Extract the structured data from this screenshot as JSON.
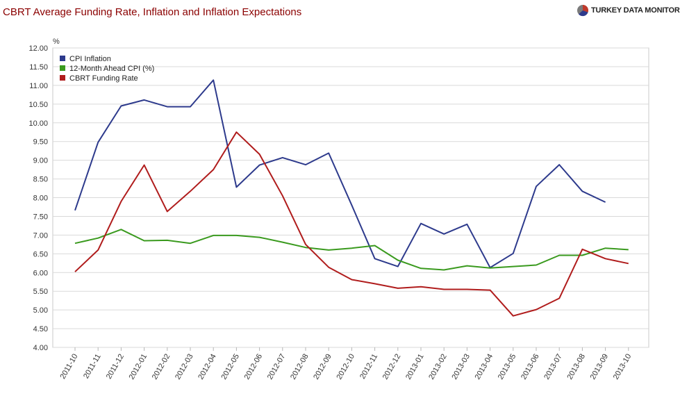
{
  "title": "CBRT Average Funding Rate, Inflation and Inflation Expectations",
  "brand": {
    "name": "TURKEY DATA MONITOR",
    "logo_icon": "pie-logo-icon",
    "logo_colors": [
      "#2d3a8c",
      "#c0392b",
      "#7b7b7b"
    ]
  },
  "chart_data": {
    "type": "line",
    "unit_label": "%",
    "ylim": [
      4.0,
      12.0
    ],
    "y_ticks": [
      "4.00",
      "4.50",
      "5.00",
      "5.50",
      "6.00",
      "6.50",
      "7.00",
      "7.50",
      "8.00",
      "8.50",
      "9.00",
      "9.50",
      "10.00",
      "10.50",
      "11.00",
      "11.50",
      "12.00"
    ],
    "grid": true,
    "legend_position": "top-left",
    "categories": [
      "2011-10",
      "2011-11",
      "2011-12",
      "2012-01",
      "2012-02",
      "2012-03",
      "2012-04",
      "2012-05",
      "2012-06",
      "2012-07",
      "2012-08",
      "2012-09",
      "2012-10",
      "2012-11",
      "2012-12",
      "2013-01",
      "2013-02",
      "2013-03",
      "2013-04",
      "2013-05",
      "2013-06",
      "2013-07",
      "2013-08",
      "2013-09",
      "2013-10"
    ],
    "series": [
      {
        "name": "CPI Inflation",
        "color": "#2d3a8c",
        "values": [
          7.66,
          9.48,
          10.45,
          10.61,
          10.43,
          10.43,
          11.14,
          8.28,
          8.87,
          9.07,
          8.88,
          9.19,
          7.8,
          6.37,
          6.16,
          7.31,
          7.03,
          7.29,
          6.13,
          6.51,
          8.3,
          8.88,
          8.17,
          7.88,
          null
        ]
      },
      {
        "name": "12-Month Ahead CPI (%)",
        "color": "#3a9a1e",
        "values": [
          6.78,
          6.92,
          7.15,
          6.85,
          6.86,
          6.78,
          6.99,
          6.99,
          6.94,
          6.81,
          6.67,
          6.6,
          6.65,
          6.72,
          6.33,
          6.11,
          6.07,
          6.18,
          6.12,
          6.16,
          6.2,
          6.46,
          6.46,
          6.65,
          6.61
        ]
      },
      {
        "name": "CBRT Funding Rate",
        "color": "#b01c1c",
        "values": [
          6.02,
          6.6,
          7.9,
          8.87,
          7.63,
          8.17,
          8.75,
          9.75,
          9.16,
          8.05,
          6.75,
          6.14,
          5.81,
          5.7,
          5.58,
          5.62,
          5.55,
          5.55,
          5.53,
          4.84,
          5.01,
          5.31,
          6.62,
          6.37,
          6.24
        ]
      }
    ]
  }
}
